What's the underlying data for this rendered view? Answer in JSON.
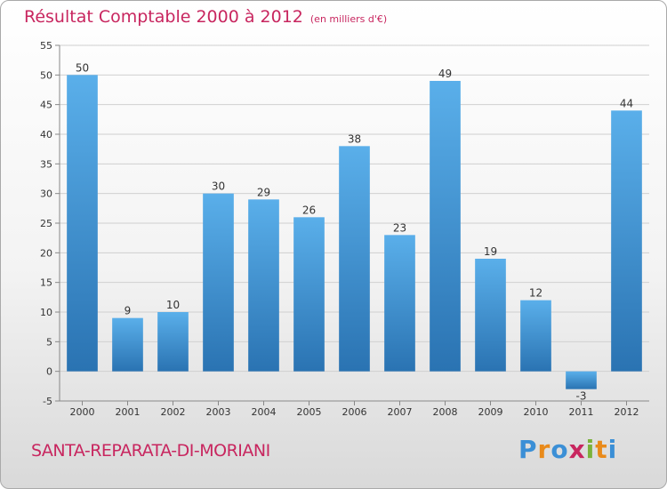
{
  "title": "Résultat Comptable 2000 à 2012",
  "subtitle": "(en milliers d'€)",
  "commune": "SANTA-REPARATA-DI-MORIANI",
  "logo": {
    "letters": [
      "P",
      "r",
      "o",
      "x",
      "i",
      "t",
      "i"
    ],
    "colors": [
      "#3b8fd6",
      "#e98a1a",
      "#3b8fd6",
      "#c8265f",
      "#7bb23b",
      "#e98a1a",
      "#3b8fd6"
    ]
  },
  "colors": {
    "bar_top": "#5aafea",
    "bar_bottom": "#2a73b2",
    "text": "#c8265f"
  },
  "chart_data": {
    "type": "bar",
    "categories": [
      "2000",
      "2001",
      "2002",
      "2003",
      "2004",
      "2005",
      "2006",
      "2007",
      "2008",
      "2009",
      "2010",
      "2011",
      "2012"
    ],
    "values": [
      50,
      9,
      10,
      30,
      29,
      26,
      38,
      23,
      49,
      19,
      12,
      -3,
      44
    ],
    "ylim": [
      -5,
      55
    ],
    "yticks": [
      -5,
      0,
      5,
      10,
      15,
      20,
      25,
      30,
      35,
      40,
      45,
      50,
      55
    ],
    "grid": true
  }
}
